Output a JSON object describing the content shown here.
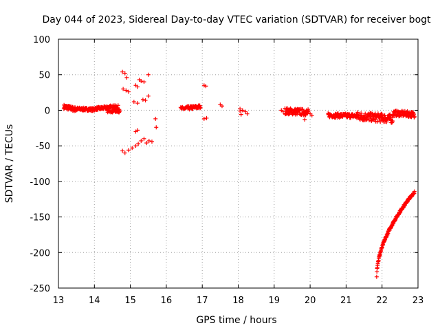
{
  "chart_data": {
    "type": "scatter",
    "title": "Day 044 of 2023, Sidereal Day-to-day VTEC variation (SDTVAR) for receiver bogt",
    "xlabel": "GPS time / hours",
    "ylabel": "SDTVAR / TECUs",
    "xlim": [
      13,
      23
    ],
    "ylim": [
      -250,
      100
    ],
    "xticks": [
      "13",
      "14",
      "15",
      "16",
      "17",
      "18",
      "19",
      "20",
      "21",
      "22",
      "23"
    ],
    "yticks": [
      "100",
      "50",
      "0",
      "-50",
      "-100",
      "-150",
      "-200",
      "-250"
    ],
    "grid": true,
    "marker": "+",
    "series": [
      {
        "name": "SDTVAR",
        "color": "#ff0000",
        "segments": [
          {
            "x0": 13.15,
            "x1": 13.5,
            "y0": 5,
            "y1": 1,
            "band": 6,
            "n": 60
          },
          {
            "x0": 13.5,
            "x1": 14.0,
            "y0": 2,
            "y1": 1,
            "band": 4,
            "n": 70
          },
          {
            "x0": 14.0,
            "x1": 14.4,
            "y0": 2,
            "y1": 4,
            "band": 4,
            "n": 55
          },
          {
            "x0": 14.35,
            "x1": 14.7,
            "y0": 2,
            "y1": 2,
            "band": 10,
            "n": 70
          },
          {
            "x0": 16.4,
            "x1": 16.95,
            "y0": 2,
            "y1": 5,
            "band": 5,
            "n": 60
          },
          {
            "x0": 19.3,
            "x1": 19.95,
            "y0": -1,
            "y1": -3,
            "band": 9,
            "n": 90
          },
          {
            "x0": 20.5,
            "x1": 21.3,
            "y0": -7,
            "y1": -8,
            "band": 6,
            "n": 90
          },
          {
            "x0": 21.3,
            "x1": 22.3,
            "y0": -8,
            "y1": -12,
            "band": 12,
            "n": 130
          },
          {
            "x0": 22.3,
            "x1": 22.9,
            "y0": -4,
            "y1": -6,
            "band": 8,
            "n": 80
          },
          {
            "x0": 21.85,
            "x1": 22.9,
            "y0": -233,
            "y1": -115,
            "band": 3,
            "n": 160,
            "curve": 0.55
          }
        ],
        "points": [
          [
            14.78,
            54
          ],
          [
            14.85,
            52
          ],
          [
            14.9,
            46
          ],
          [
            14.8,
            30
          ],
          [
            14.88,
            28
          ],
          [
            14.95,
            26
          ],
          [
            15.15,
            35
          ],
          [
            15.2,
            33
          ],
          [
            15.25,
            43
          ],
          [
            15.3,
            41
          ],
          [
            15.38,
            40
          ],
          [
            15.5,
            50
          ],
          [
            15.1,
            12
          ],
          [
            15.2,
            10
          ],
          [
            15.35,
            15
          ],
          [
            15.42,
            14
          ],
          [
            15.5,
            20
          ],
          [
            14.78,
            -57
          ],
          [
            14.85,
            -60
          ],
          [
            14.95,
            -56
          ],
          [
            15.05,
            -53
          ],
          [
            15.15,
            -30
          ],
          [
            15.2,
            -28
          ],
          [
            15.15,
            -50
          ],
          [
            15.22,
            -47
          ],
          [
            15.3,
            -43
          ],
          [
            15.38,
            -40
          ],
          [
            15.45,
            -46
          ],
          [
            15.52,
            -43
          ],
          [
            15.6,
            -44
          ],
          [
            15.7,
            -12
          ],
          [
            15.72,
            -24
          ],
          [
            17.05,
            35
          ],
          [
            17.1,
            34
          ],
          [
            17.05,
            -12
          ],
          [
            17.12,
            -11
          ],
          [
            17.5,
            8
          ],
          [
            17.55,
            6
          ],
          [
            18.05,
            -1
          ],
          [
            18.08,
            -6
          ],
          [
            18.12,
            0
          ],
          [
            18.2,
            -2
          ],
          [
            18.25,
            -5
          ],
          [
            18.05,
            2
          ],
          [
            19.2,
            0
          ],
          [
            19.25,
            -2
          ],
          [
            20.0,
            -5
          ],
          [
            20.05,
            -7
          ],
          [
            19.85,
            -13
          ]
        ]
      }
    ]
  }
}
